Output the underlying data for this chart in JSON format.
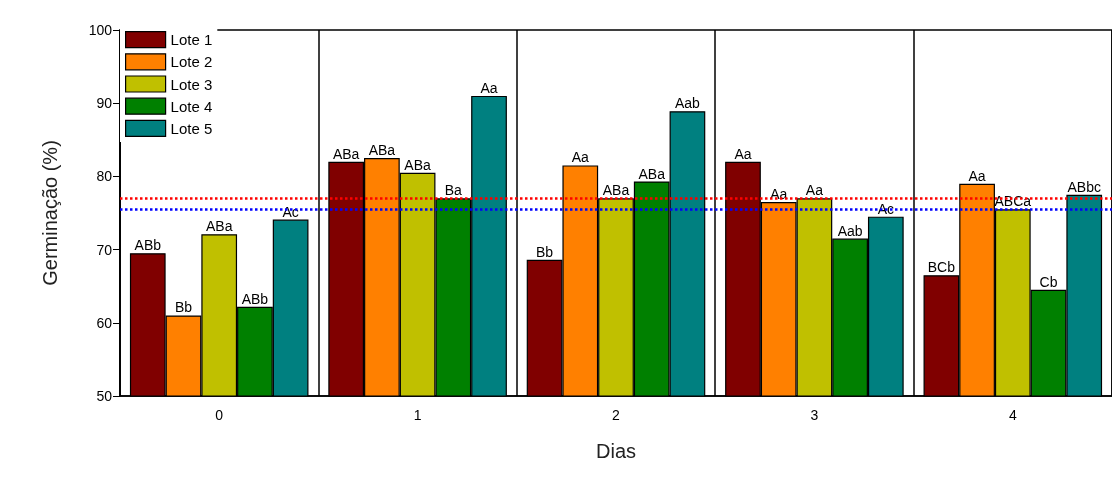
{
  "chart_data": {
    "type": "bar",
    "xlabel": "Dias",
    "ylabel": "Germinação (%)",
    "categories": [
      "0",
      "1",
      "2",
      "3",
      "4"
    ],
    "ylim": [
      50,
      100
    ],
    "yticks": [
      50,
      60,
      70,
      80,
      90,
      100
    ],
    "grid": "x",
    "legend": "top left",
    "series": [
      {
        "name": "Lote 1",
        "color": "#800000",
        "values": [
          69.5,
          82,
          68.6,
          82,
          66.5
        ],
        "value_labels": [
          "ABb",
          "ABa",
          "Bb",
          "Aa",
          "BCb"
        ]
      },
      {
        "name": "Lote 2",
        "color": "#ff8000",
        "values": [
          61,
          82.5,
          81.5,
          76.5,
          79
        ],
        "value_labels": [
          "Bb",
          "ABa",
          "Aa",
          "Aa",
          "Aa"
        ]
      },
      {
        "name": "Lote 3",
        "color": "#c0c000",
        "values": [
          72.1,
          80.5,
          77,
          77,
          75.5
        ],
        "value_labels": [
          "ABa",
          "ABa",
          "ABa",
          "Aa",
          "ABCa"
        ]
      },
      {
        "name": "Lote 4",
        "color": "#008000",
        "values": [
          62.2,
          77,
          79.3,
          71.5,
          64.5
        ],
        "value_labels": [
          "ABb",
          "Ba",
          "ABa",
          "Aab",
          "Cb"
        ]
      },
      {
        "name": "Lote 5",
        "color": "#008080",
        "values": [
          74.1,
          91,
          88.9,
          74.5,
          77.5
        ],
        "value_labels": [
          "Ac",
          "Aa",
          "Aab",
          "Ac",
          "ABbc"
        ]
      }
    ],
    "ref_lines": [
      {
        "axis": "y",
        "value": 77,
        "color": "#ff0000",
        "line_style": "dotted"
      },
      {
        "axis": "y",
        "value": 75.5,
        "color": "#0000ff",
        "line_style": "dotted"
      }
    ]
  }
}
